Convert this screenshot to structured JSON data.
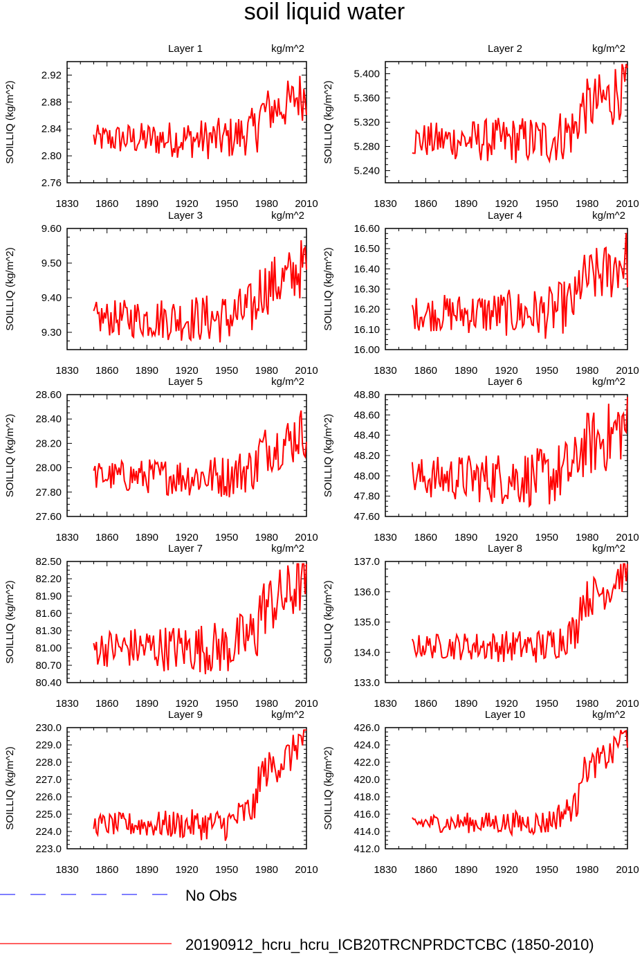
{
  "chart_data": {
    "type": "line",
    "title": "soil liquid water",
    "xlim": [
      1830,
      2010
    ],
    "x_ticks": [
      1830,
      1860,
      1890,
      1920,
      1950,
      1980,
      2010
    ],
    "ylabel": "SOILLIQ  (kg/m^2)",
    "units": "kg/m^2",
    "panels": [
      {
        "title": "Layer 1",
        "units": "kg/m^2",
        "ylim": [
          2.76,
          2.94
        ],
        "y_ticks": [
          "2.76",
          "2.80",
          "2.84",
          "2.88",
          "2.92"
        ],
        "base": 2.825,
        "trend": 0.045,
        "amp": 0.03
      },
      {
        "title": "Layer 2",
        "units": "kg/m^2",
        "ylim": [
          5.22,
          5.42
        ],
        "y_ticks": [
          "5.240",
          "5.280",
          "5.320",
          "5.360",
          "5.400"
        ],
        "base": 5.29,
        "trend": 0.06,
        "amp": 0.04
      },
      {
        "title": "Layer 3",
        "units": "kg/m^2",
        "ylim": [
          9.25,
          9.6
        ],
        "y_ticks": [
          "9.30",
          "9.40",
          "9.50",
          "9.60"
        ],
        "base": 9.34,
        "trend": 0.1,
        "amp": 0.07
      },
      {
        "title": "Layer 4",
        "units": "kg/m^2",
        "ylim": [
          16.0,
          16.6
        ],
        "y_ticks": [
          "16.00",
          "16.10",
          "16.20",
          "16.30",
          "16.40",
          "16.50",
          "16.60"
        ],
        "base": 16.18,
        "trend": 0.18,
        "amp": 0.12
      },
      {
        "title": "Layer 5",
        "units": "kg/m^2",
        "ylim": [
          27.6,
          28.6
        ],
        "y_ticks": [
          "27.60",
          "27.80",
          "28.00",
          "28.20",
          "28.40",
          "28.60"
        ],
        "base": 27.93,
        "trend": 0.25,
        "amp": 0.17
      },
      {
        "title": "Layer 6",
        "units": "kg/m^2",
        "ylim": [
          47.6,
          48.8
        ],
        "y_ticks": [
          "47.60",
          "47.80",
          "48.00",
          "48.20",
          "48.40",
          "48.60",
          "48.80"
        ],
        "base": 47.98,
        "trend": 0.35,
        "amp": 0.28
      },
      {
        "title": "Layer 7",
        "units": "kg/m^2",
        "ylim": [
          80.4,
          82.5
        ],
        "y_ticks": [
          "80.40",
          "80.70",
          "81.00",
          "81.30",
          "81.60",
          "81.90",
          "82.20",
          "82.50"
        ],
        "base": 81.0,
        "trend": 0.8,
        "amp": 0.45
      },
      {
        "title": "Layer 8",
        "units": "kg/m^2",
        "ylim": [
          133.0,
          137.0
        ],
        "y_ticks": [
          "133.0",
          "134.0",
          "135.0",
          "136.0",
          "137.0"
        ],
        "base": 134.2,
        "trend": 1.7,
        "amp": 0.55
      },
      {
        "title": "Layer 9",
        "units": "kg/m^2",
        "ylim": [
          223.0,
          230.0
        ],
        "y_ticks": [
          "223.0",
          "224.0",
          "225.0",
          "226.0",
          "227.0",
          "228.0",
          "229.0",
          "230.0"
        ],
        "base": 224.4,
        "trend": 3.4,
        "amp": 0.9
      },
      {
        "title": "Layer 10",
        "units": "kg/m^2",
        "ylim": [
          412.0,
          426.0
        ],
        "y_ticks": [
          "412.0",
          "414.0",
          "416.0",
          "418.0",
          "420.0",
          "422.0",
          "424.0",
          "426.0"
        ],
        "base": 415.0,
        "trend": 6.8,
        "amp": 1.4
      }
    ],
    "legend": [
      {
        "label": "No Obs",
        "color": "#3333ff",
        "style": "dashed"
      },
      {
        "label": "20190912_hcru_hcru_ICB20TRCNPRDCTCBC (1850-2010)",
        "color": "#ff0000",
        "style": "solid"
      }
    ],
    "series_x_range": [
      1850,
      2010
    ]
  }
}
